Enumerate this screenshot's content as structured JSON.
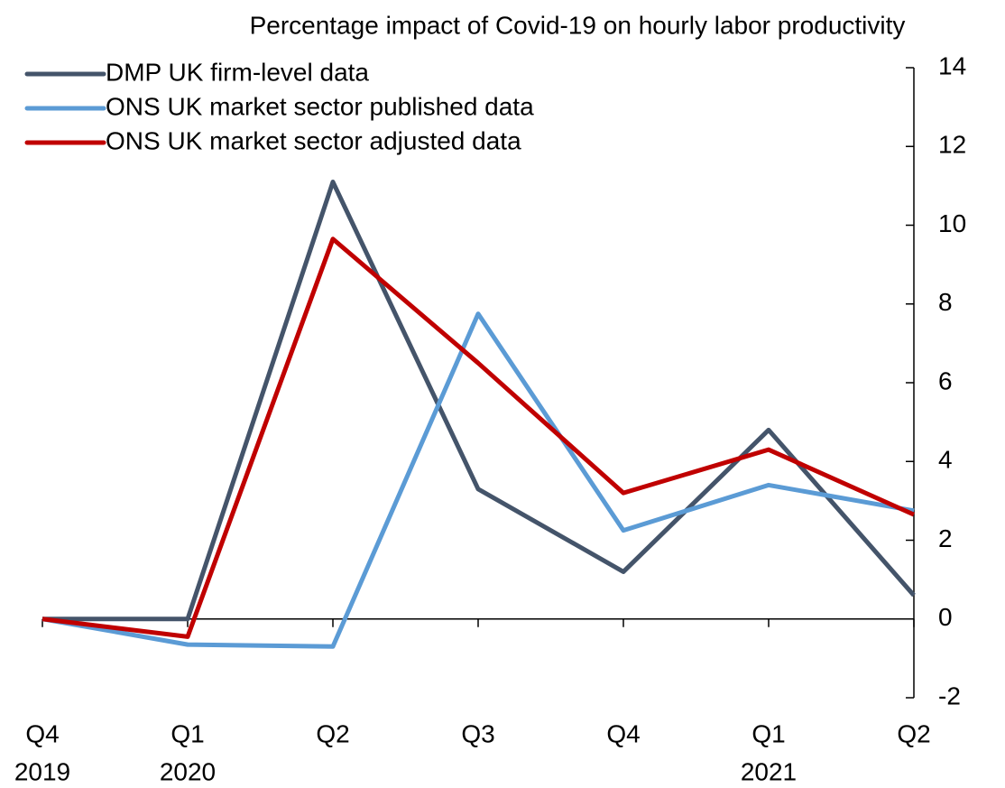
{
  "chart_data": {
    "type": "line",
    "title": "Percentage impact of Covid-19 on hourly labor productivity",
    "categories": [
      "Q4",
      "Q1",
      "Q2",
      "Q3",
      "Q4",
      "Q1",
      "Q2"
    ],
    "category_years": [
      "2019",
      "2020",
      null,
      null,
      null,
      "2021",
      null
    ],
    "series": [
      {
        "name": "DMP UK firm-level data",
        "color": "#44546a",
        "values": [
          0,
          0,
          11.1,
          3.3,
          1.2,
          4.8,
          0.6
        ]
      },
      {
        "name": "ONS UK market sector published data",
        "color": "#5b9bd5",
        "values": [
          0,
          -0.65,
          -0.7,
          7.75,
          2.25,
          3.4,
          2.75
        ]
      },
      {
        "name": "ONS UK market sector adjusted data",
        "color": "#c00000",
        "values": [
          0,
          -0.45,
          9.65,
          6.5,
          3.2,
          4.3,
          2.65
        ]
      }
    ],
    "ylim": [
      -2,
      14
    ],
    "yticks": [
      -2,
      0,
      2,
      4,
      6,
      8,
      10,
      12,
      14
    ],
    "y_axis_side": "right",
    "grid": false,
    "legend": "top-left"
  }
}
